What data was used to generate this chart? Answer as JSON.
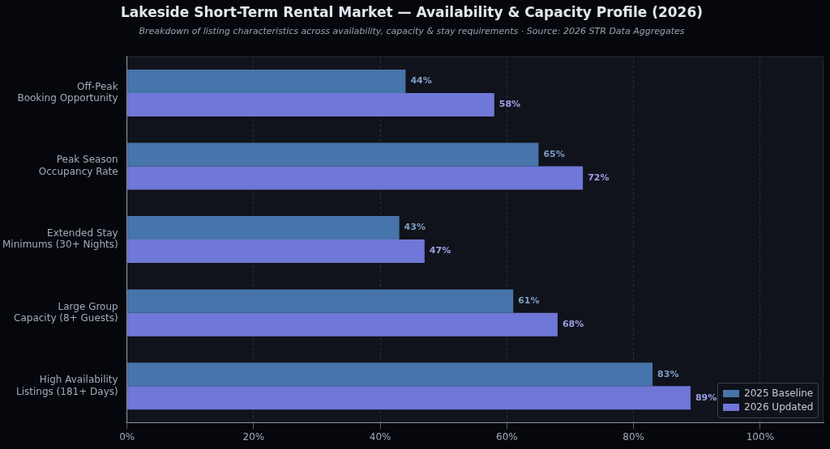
{
  "chart_data": {
    "type": "bar",
    "orientation": "horizontal",
    "title": "Lakeside Short-Term Rental Market — Availability & Capacity Profile (2026)",
    "subtitle": "Breakdown of listing characteristics across availability, capacity & stay requirements · Source: 2026 STR Data Aggregates",
    "categories": [
      "Off-Peak\nBooking Opportunity",
      "Peak Season\nOccupancy Rate",
      "Extended Stay\nMinimums (30+ Nights)",
      "Large Group\nCapacity (8+ Guests)",
      "High Availability\nListings (181+ Days)"
    ],
    "series": [
      {
        "name": "2025 Baseline",
        "color": "#4774aa",
        "values": [
          44,
          65,
          43,
          61,
          83
        ],
        "value_labels": [
          "44%",
          "65%",
          "43%",
          "61%",
          "83%"
        ]
      },
      {
        "name": "2026 Updated",
        "color": "#6f77d8",
        "values": [
          58,
          72,
          47,
          68,
          89
        ],
        "value_labels": [
          "58%",
          "72%",
          "47%",
          "68%",
          "89%"
        ]
      }
    ],
    "xlim": [
      0,
      110
    ],
    "xticks": [
      {
        "value": 0,
        "label": "0%"
      },
      {
        "value": 20,
        "label": "20%"
      },
      {
        "value": 40,
        "label": "40%"
      },
      {
        "value": 60,
        "label": "60%"
      },
      {
        "value": 80,
        "label": "80%"
      },
      {
        "value": 100,
        "label": "100%"
      }
    ],
    "grid": "x",
    "legend": "bottom right"
  }
}
